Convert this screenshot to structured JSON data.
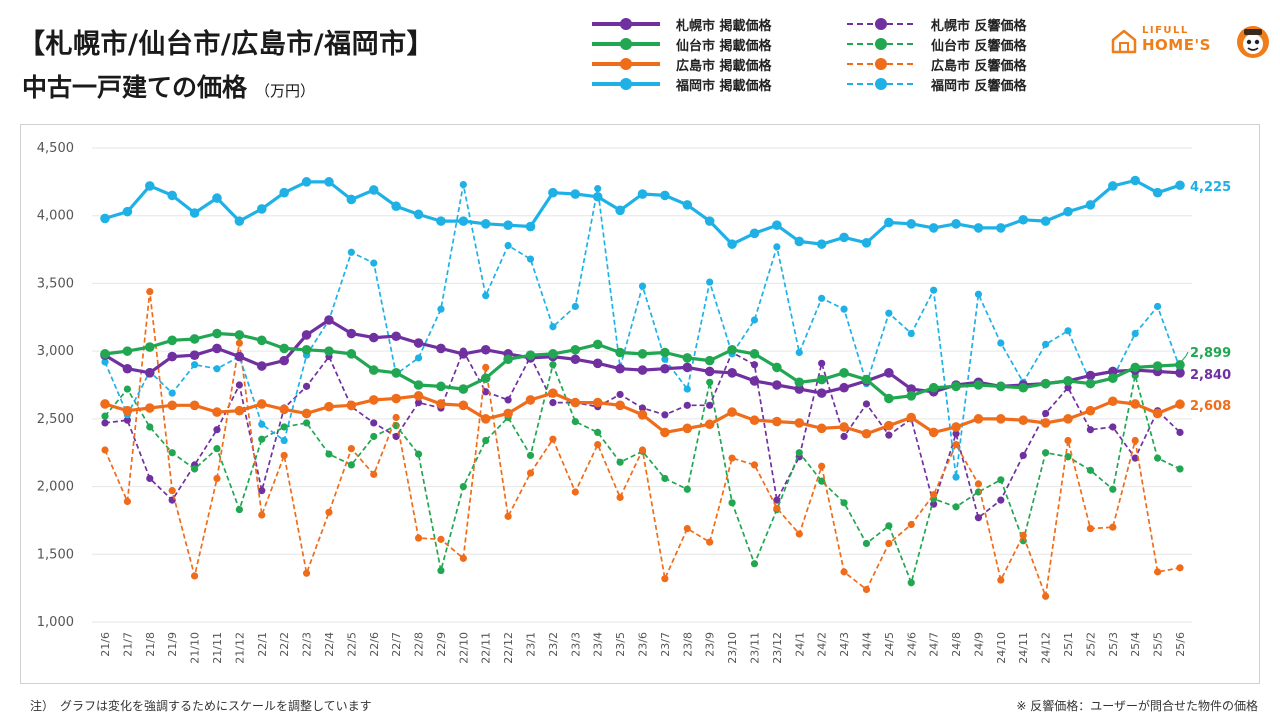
{
  "header": {
    "title_line1": "【札幌市/仙台市/広島市/福岡市】",
    "title_line2": "中古一戸建ての価格",
    "title_unit": "（万円）"
  },
  "legend": [
    {
      "label": "札幌市 掲載価格",
      "color": "#7030a0",
      "style": "solid"
    },
    {
      "label": "仙台市 掲載価格",
      "color": "#21a651",
      "style": "solid"
    },
    {
      "label": "広島市 掲載価格",
      "color": "#ef6c1a",
      "style": "solid"
    },
    {
      "label": "福岡市 掲載価格",
      "color": "#1fb1e6",
      "style": "solid"
    },
    {
      "label": "札幌市 反響価格",
      "color": "#7030a0",
      "style": "dashed"
    },
    {
      "label": "仙台市 反響価格",
      "color": "#21a651",
      "style": "dashed"
    },
    {
      "label": "広島市 反響価格",
      "color": "#ef6c1a",
      "style": "dashed"
    },
    {
      "label": "福岡市 反響価格",
      "color": "#1fb1e6",
      "style": "dashed"
    }
  ],
  "logo": {
    "line1": "LIFULL",
    "line2": "HOME'S",
    "color": "#ef7d1a"
  },
  "footnotes": {
    "left": "注）　グラフは変化を強調するためにスケールを調整しています",
    "right": "※ 反響価格：ユーザーが問合せた物件の価格"
  },
  "chart_data": {
    "type": "line",
    "ylim": [
      1000,
      4500
    ],
    "yticks": [
      1000,
      1500,
      2000,
      2500,
      3000,
      3500,
      4000,
      4500
    ],
    "ytick_labels": [
      "1,000",
      "1,500",
      "2,000",
      "2,500",
      "3,000",
      "3,500",
      "4,000",
      "4,500"
    ],
    "grid": "horizontal",
    "categories": [
      "21/6",
      "21/7",
      "21/8",
      "21/9",
      "21/10",
      "21/11",
      "21/12",
      "22/1",
      "22/2",
      "22/3",
      "22/4",
      "22/5",
      "22/6",
      "22/7",
      "22/8",
      "22/9",
      "22/10",
      "22/11",
      "22/12",
      "23/1",
      "23/2",
      "23/3",
      "23/4",
      "23/5",
      "23/6",
      "23/7",
      "23/8",
      "23/9",
      "23/10",
      "23/11",
      "23/12",
      "24/1",
      "24/2",
      "24/3",
      "24/4",
      "24/5",
      "24/6",
      "24/7",
      "24/8",
      "24/9",
      "24/10",
      "24/11",
      "24/12",
      "25/1",
      "25/2",
      "25/3",
      "25/4",
      "25/5",
      "25/6"
    ],
    "end_labels": [
      {
        "text": "4,225",
        "color": "#1fb1e6"
      },
      {
        "text": "2,899",
        "color": "#21a651"
      },
      {
        "text": "2,840",
        "color": "#7030a0"
      },
      {
        "text": "2,608",
        "color": "#ef6c1a"
      }
    ],
    "series": [
      {
        "name": "札幌市 掲載価格",
        "color": "#7030a0",
        "dashed": false,
        "values": [
          2970,
          2870,
          2840,
          2960,
          2970,
          3020,
          2960,
          2890,
          2930,
          3120,
          3230,
          3130,
          3100,
          3110,
          3060,
          3020,
          2980,
          3010,
          2980,
          2950,
          2960,
          2940,
          2910,
          2870,
          2860,
          2870,
          2880,
          2850,
          2840,
          2780,
          2750,
          2720,
          2690,
          2730,
          2780,
          2840,
          2720,
          2700,
          2750,
          2770,
          2740,
          2750,
          2760,
          2780,
          2820,
          2850,
          2860,
          2850,
          2840
        ]
      },
      {
        "name": "仙台市 掲載価格",
        "color": "#21a651",
        "dashed": false,
        "values": [
          2980,
          3000,
          3030,
          3080,
          3090,
          3130,
          3120,
          3080,
          3020,
          3010,
          3000,
          2980,
          2860,
          2840,
          2750,
          2740,
          2720,
          2800,
          2940,
          2970,
          2980,
          3010,
          3050,
          2990,
          2980,
          2990,
          2950,
          2930,
          3010,
          2980,
          2880,
          2770,
          2790,
          2840,
          2790,
          2650,
          2670,
          2730,
          2740,
          2750,
          2740,
          2730,
          2760,
          2780,
          2760,
          2800,
          2880,
          2890,
          2899
        ]
      },
      {
        "name": "広島市 掲載価格",
        "color": "#ef6c1a",
        "dashed": false,
        "values": [
          2610,
          2560,
          2580,
          2600,
          2600,
          2550,
          2560,
          2610,
          2570,
          2540,
          2590,
          2600,
          2640,
          2650,
          2670,
          2610,
          2600,
          2500,
          2540,
          2640,
          2690,
          2620,
          2620,
          2600,
          2530,
          2400,
          2430,
          2460,
          2550,
          2490,
          2480,
          2470,
          2430,
          2440,
          2390,
          2450,
          2510,
          2400,
          2440,
          2500,
          2500,
          2490,
          2470,
          2500,
          2560,
          2630,
          2610,
          2540,
          2608
        ]
      },
      {
        "name": "福岡市 掲載価格",
        "color": "#1fb1e6",
        "dashed": false,
        "values": [
          3980,
          4030,
          4220,
          4150,
          4020,
          4130,
          3960,
          4050,
          4170,
          4250,
          4250,
          4120,
          4190,
          4070,
          4010,
          3960,
          3960,
          3940,
          3930,
          3920,
          4170,
          4160,
          4140,
          4040,
          4160,
          4150,
          4080,
          3960,
          3790,
          3870,
          3930,
          3810,
          3790,
          3840,
          3800,
          3950,
          3940,
          3910,
          3940,
          3910,
          3910,
          3970,
          3960,
          4030,
          4080,
          4220,
          4260,
          4170,
          4225
        ]
      },
      {
        "name": "札幌市 反響価格",
        "color": "#7030a0",
        "dashed": true,
        "values": [
          2470,
          2490,
          2060,
          1900,
          2160,
          2420,
          2750,
          1970,
          2580,
          2740,
          2960,
          2590,
          2470,
          2370,
          2620,
          2580,
          3000,
          2700,
          2640,
          2960,
          2620,
          2620,
          2590,
          2680,
          2580,
          2530,
          2600,
          2600,
          2990,
          2900,
          1900,
          2220,
          2910,
          2370,
          2610,
          2380,
          2500,
          1870,
          2390,
          1770,
          1900,
          2230,
          2540,
          2730,
          2420,
          2440,
          2210,
          2560,
          2400
        ]
      },
      {
        "name": "仙台市 反響価格",
        "color": "#21a651",
        "dashed": true,
        "values": [
          2520,
          2720,
          2440,
          2250,
          2130,
          2280,
          1830,
          2350,
          2440,
          2470,
          2240,
          2160,
          2370,
          2450,
          2240,
          1380,
          2000,
          2340,
          2510,
          2230,
          2900,
          2480,
          2400,
          2180,
          2260,
          2060,
          1980,
          2770,
          1880,
          1430,
          1830,
          2250,
          2040,
          1880,
          1580,
          1710,
          1290,
          1910,
          1850,
          1960,
          2050,
          1600,
          2250,
          2220,
          2120,
          1980,
          2820,
          2210,
          2130
        ]
      },
      {
        "name": "広島市 反響価格",
        "color": "#ef6c1a",
        "dashed": true,
        "values": [
          2270,
          1890,
          3440,
          1970,
          1340,
          2060,
          3060,
          1790,
          2230,
          1360,
          1810,
          2280,
          2090,
          2510,
          1620,
          1610,
          1470,
          2880,
          1780,
          2100,
          2350,
          1960,
          2310,
          1920,
          2270,
          1320,
          1690,
          1590,
          2210,
          2160,
          1840,
          1650,
          2150,
          1370,
          1240,
          1580,
          1720,
          1940,
          2310,
          2020,
          1310,
          1640,
          1190,
          2340,
          1690,
          1700,
          2340,
          1370,
          1400
        ]
      },
      {
        "name": "福岡市 反響価格",
        "color": "#1fb1e6",
        "dashed": true,
        "values": [
          2920,
          2530,
          2850,
          2690,
          2900,
          2870,
          2960,
          2460,
          2340,
          2970,
          3230,
          3730,
          3650,
          2830,
          2950,
          3310,
          4230,
          3410,
          3780,
          3680,
          3180,
          3330,
          4200,
          2880,
          3480,
          2940,
          2720,
          3510,
          2980,
          3230,
          3770,
          2990,
          3390,
          3310,
          2760,
          3280,
          3130,
          3450,
          2070,
          3420,
          3060,
          2770,
          3050,
          3150,
          2770,
          2800,
          3130,
          3330,
          2870
        ]
      }
    ]
  }
}
